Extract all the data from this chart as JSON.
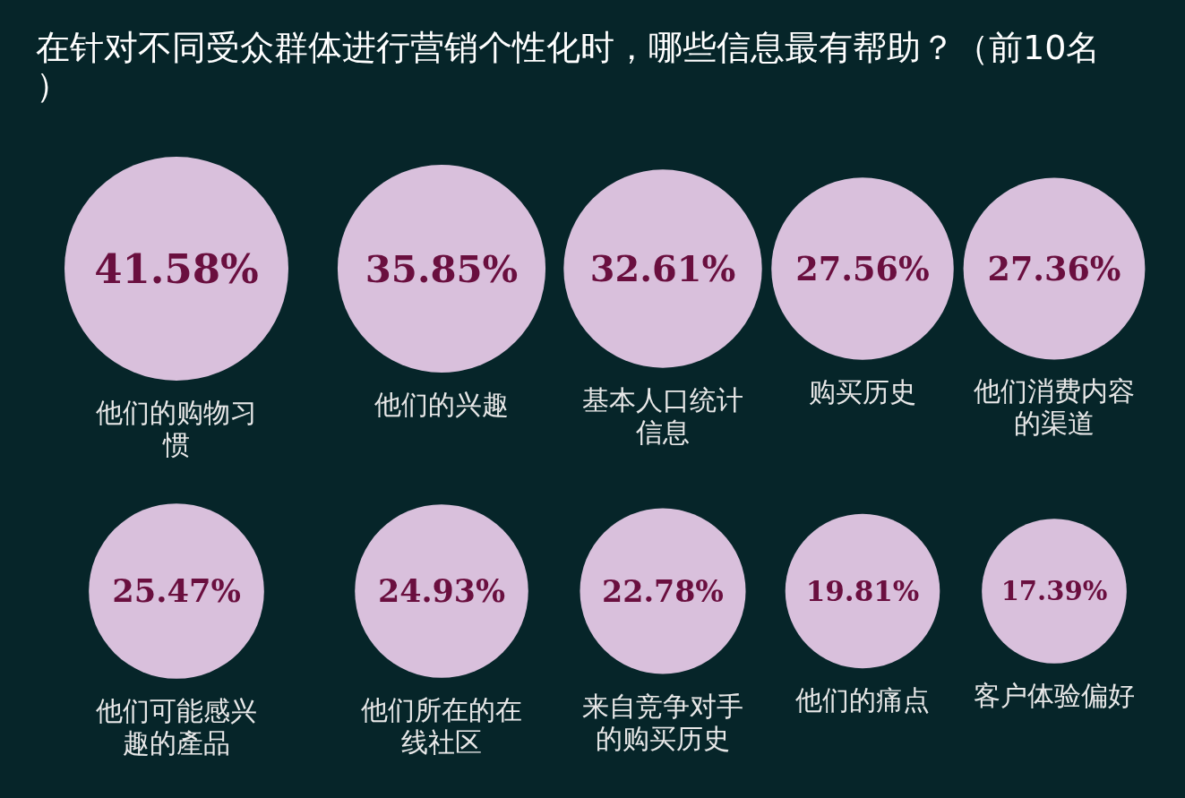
{
  "chart_data": {
    "type": "other",
    "title": "在针对不同受众群体进行营销个性化时，哪些信息最有帮助？（前10名）",
    "categories": [
      "他们的购物习惯",
      "他们的兴趣",
      "基本人口统计信息",
      "购买历史",
      "他们消费内容的渠道",
      "他们可能感兴趣的產品",
      "他们所在的在线社区",
      "来自竞争对手的购买历史",
      "他们的痛点",
      "客户体验偏好"
    ],
    "values": [
      41.58,
      35.85,
      32.61,
      27.56,
      27.36,
      25.47,
      24.93,
      22.78,
      19.81,
      17.39
    ],
    "value_labels": [
      "41.58%",
      "35.85%",
      "32.61%",
      "27.56%",
      "27.36%",
      "25.47%",
      "24.93%",
      "22.78%",
      "19.81%",
      "17.39%"
    ],
    "color": "#d9c0dc"
  }
}
